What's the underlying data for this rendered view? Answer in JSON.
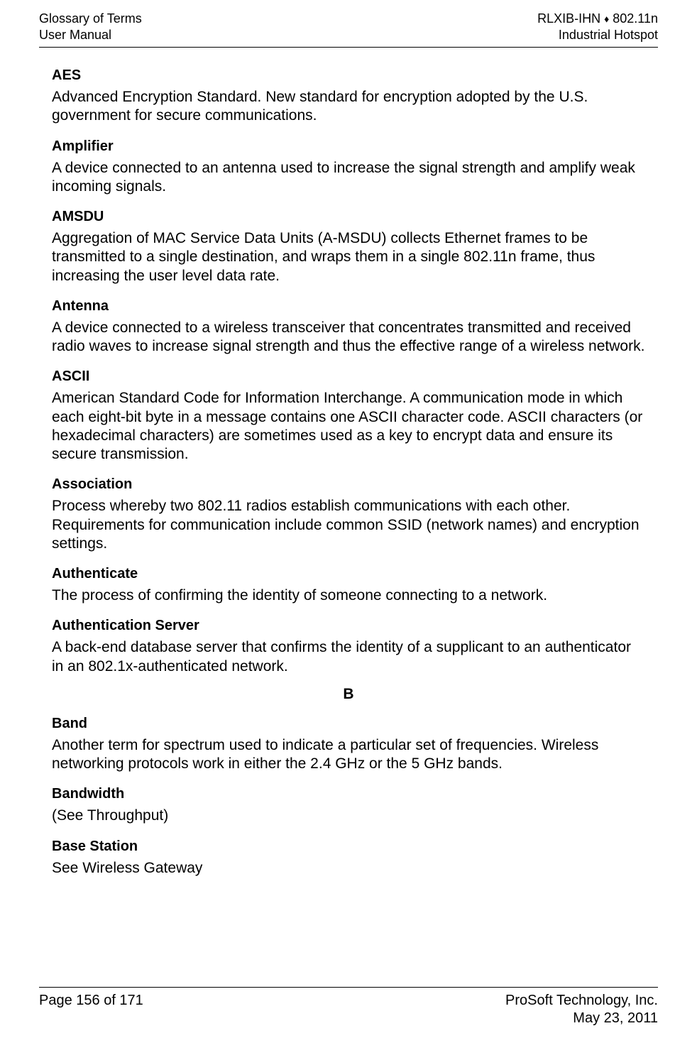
{
  "page": {
    "background_color": "#ffffff",
    "text_color": "#000000",
    "font_family": "Arial, Helvetica, sans-serif",
    "header_font_size_pt": 14,
    "term_font_size_pt": 15,
    "def_font_size_pt": 16,
    "rule_color": "#000000"
  },
  "header": {
    "left_line1": "Glossary of Terms",
    "left_line2": "User Manual",
    "right_line1_prefix": "RLXIB-IHN ",
    "right_line1_diamond": "♦",
    "right_line1_suffix": " 802.11n",
    "right_line2": "Industrial Hotspot"
  },
  "entries": [
    {
      "term": "AES",
      "def": "Advanced Encryption Standard. New standard for encryption adopted by the U.S. government for secure communications."
    },
    {
      "term": "Amplifier",
      "def": "A device connected to an antenna used to increase the signal strength and amplify weak incoming signals."
    },
    {
      "term": "AMSDU",
      "def": "Aggregation of MAC Service Data Units (A-MSDU) collects Ethernet frames to be transmitted to a single destination, and wraps them in a single 802.11n frame, thus increasing the user level data rate."
    },
    {
      "term": "Antenna",
      "def": "A device connected to a wireless transceiver that concentrates transmitted and received radio waves to increase signal strength and thus the effective range of a wireless network."
    },
    {
      "term": "ASCII",
      "def": "American Standard Code for Information Interchange. A communication mode in which each eight-bit byte in a message contains one ASCII character code. ASCII characters (or hexadecimal characters) are sometimes used as a key to encrypt data and ensure its secure transmission."
    },
    {
      "term": "Association",
      "def": "Process whereby two 802.11 radios establish communications with each other. Requirements for communication include common SSID (network names) and encryption settings."
    },
    {
      "term": "Authenticate",
      "def": "The process of confirming the identity of someone connecting to a network."
    },
    {
      "term": "Authentication Server",
      "def": "A back-end database server that confirms the identity of a supplicant to an authenticator in an 802.1x-authenticated network."
    }
  ],
  "section_letter": "B",
  "entries_b": [
    {
      "term": "Band",
      "def": "Another term for spectrum used to indicate a particular set of frequencies. Wireless networking protocols work in either the 2.4 GHz or the 5 GHz bands."
    },
    {
      "term": "Bandwidth",
      "def": "(See Throughput)"
    },
    {
      "term": "Base Station",
      "def": "See Wireless Gateway"
    }
  ],
  "footer": {
    "left": "Page 156 of 171",
    "right_line1": "ProSoft Technology, Inc.",
    "right_line2": "May 23, 2011"
  }
}
